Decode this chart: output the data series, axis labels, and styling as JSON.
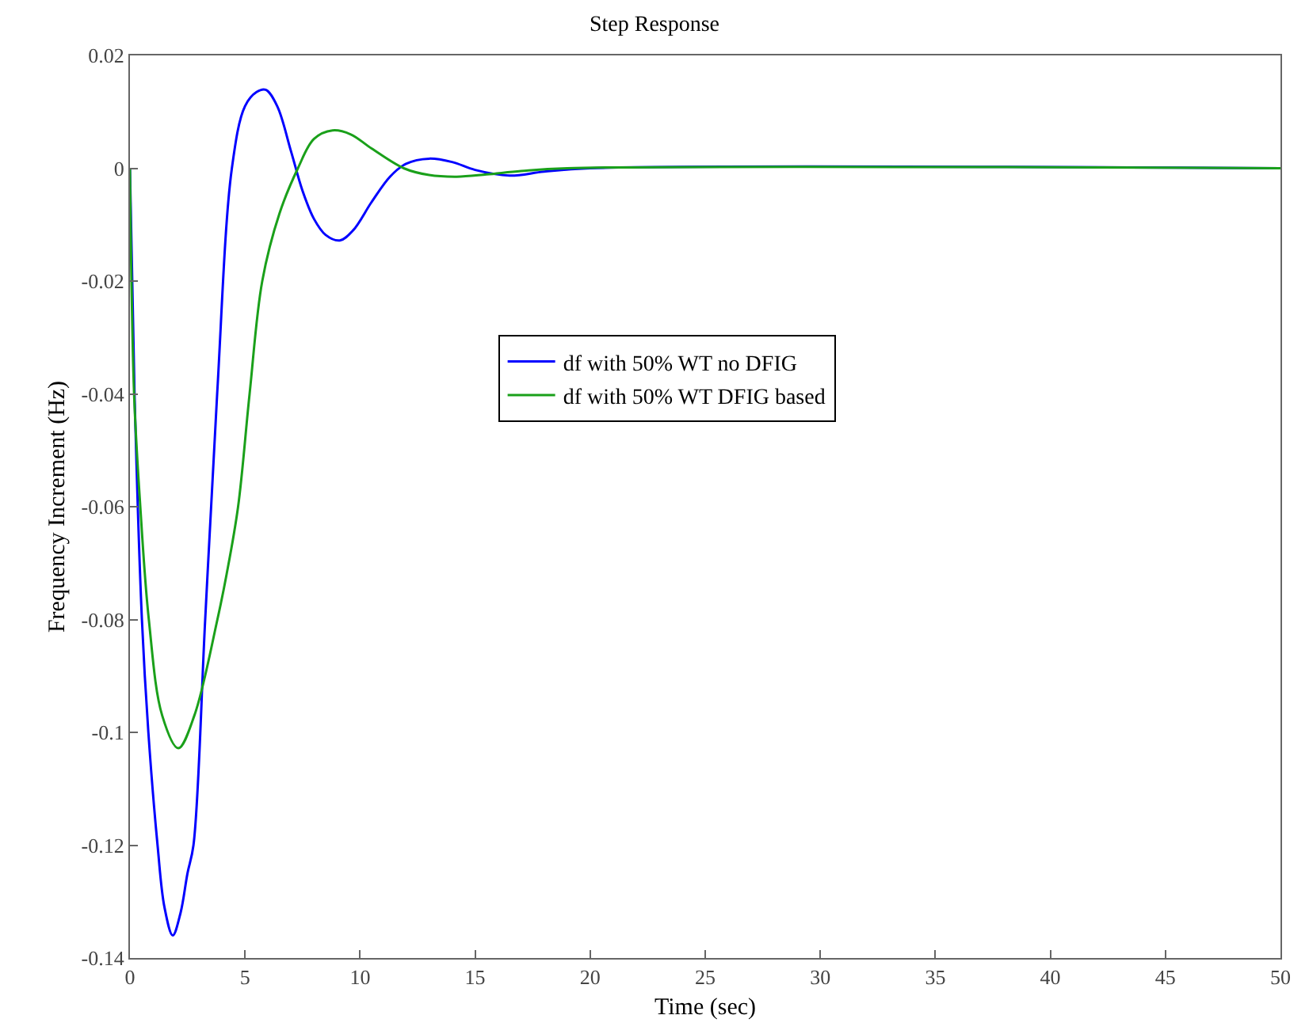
{
  "chart_data": {
    "type": "line",
    "title": "Step Response",
    "xlabel": "Time (sec)",
    "ylabel": "Frequency Increment (Hz)",
    "xlim": [
      0,
      50
    ],
    "xticks": [
      0,
      5,
      10,
      15,
      20,
      25,
      30,
      35,
      40,
      45,
      50
    ],
    "ylim": [
      -0.14,
      0.02
    ],
    "yticks": [
      -0.14,
      -0.12,
      -0.1,
      -0.08,
      -0.06,
      -0.04,
      -0.02,
      0,
      0.02
    ],
    "legend": "center",
    "marker": "none",
    "line_style": "solid",
    "series": [
      {
        "name": "df with 50% WT no DFIG",
        "color": "#0000ff",
        "x": [
          0,
          0.2,
          0.52,
          0.8,
          1.2,
          1.5,
          1.86,
          2.2,
          2.5,
          2.76,
          3.27,
          3.79,
          4.43,
          5,
          5.5,
          5.9,
          6.4,
          7,
          7.5,
          8,
          8.5,
          9.12,
          9.7,
          10.5,
          11.3,
          12,
          13,
          14,
          15,
          16.5,
          18,
          20,
          50
        ],
        "values": [
          0,
          -0.04,
          -0.08,
          -0.1,
          -0.12,
          -0.131,
          -0.136,
          -0.132,
          -0.125,
          -0.12,
          -0.08,
          -0.04,
          0,
          0.011,
          0.0135,
          0.0139,
          0.011,
          0.003,
          -0.004,
          -0.009,
          -0.0118,
          -0.0128,
          -0.011,
          -0.006,
          -0.0015,
          0.0008,
          0.0017,
          0.0011,
          -0.0003,
          -0.0013,
          -0.0006,
          0,
          0
        ]
      },
      {
        "name": "df with 50% WT DFIG based",
        "color": "#1aa01a",
        "x": [
          0,
          0.18,
          0.45,
          0.82,
          1.4,
          2.1,
          2.8,
          3.8,
          4.2,
          4.7,
          5.2,
          5.75,
          6.5,
          7.3,
          8,
          8.8,
          9.6,
          10.5,
          11.9,
          13,
          14.2,
          15.5,
          17,
          19,
          50
        ],
        "values": [
          0,
          -0.04,
          -0.06,
          -0.08,
          -0.097,
          -0.1028,
          -0.097,
          -0.08,
          -0.072,
          -0.06,
          -0.04,
          -0.02,
          -0.008,
          0,
          0.0052,
          0.0067,
          0.006,
          0.0035,
          0,
          -0.0012,
          -0.0015,
          -0.0011,
          -0.0005,
          0,
          0
        ]
      }
    ]
  }
}
